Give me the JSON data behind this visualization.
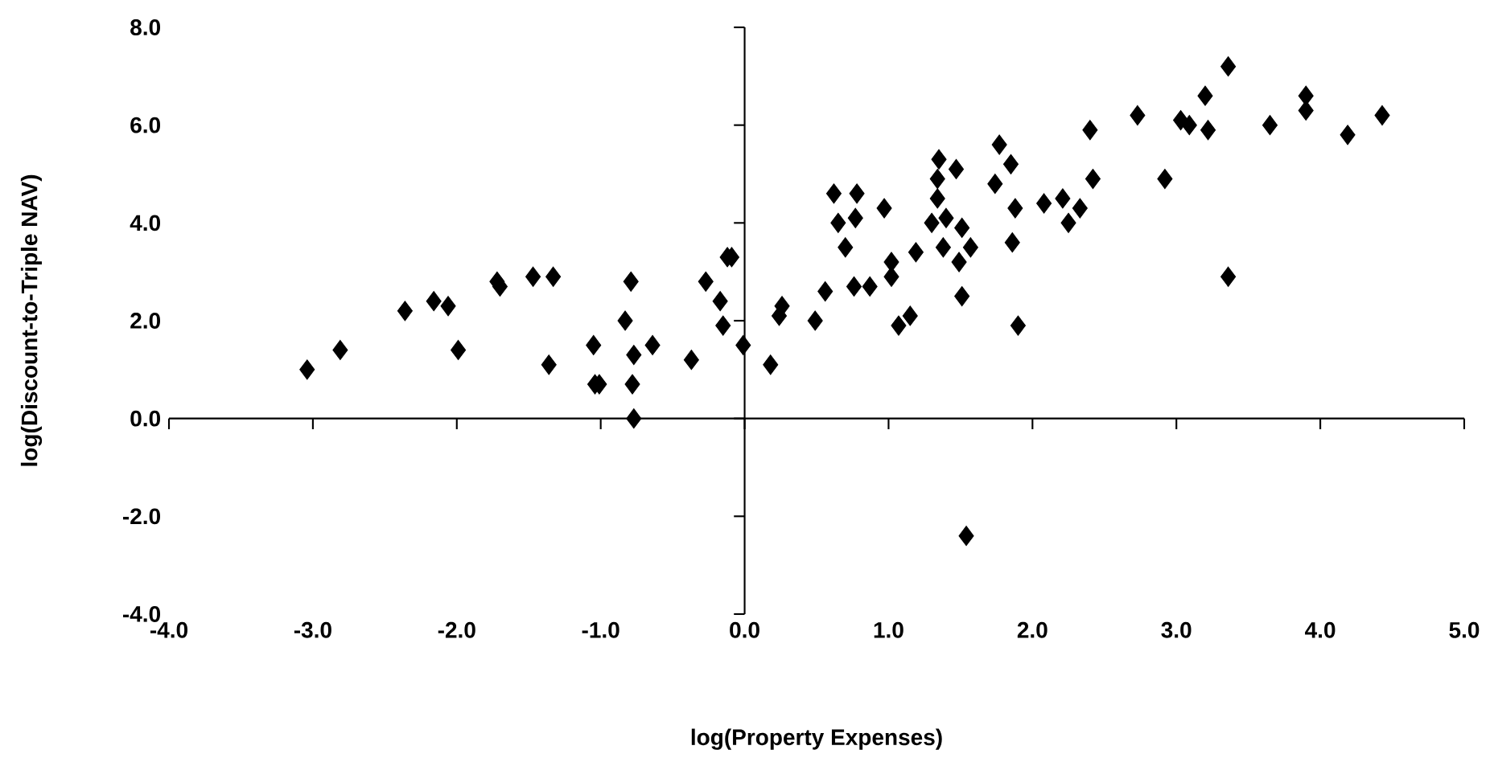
{
  "chart_data": {
    "type": "scatter",
    "xlabel": "log(Property Expenses)",
    "ylabel": "log(Discount-to-Triple NAV)",
    "marker": "diamond",
    "xlim": [
      -4,
      5
    ],
    "ylim": [
      -4,
      8
    ],
    "xticks": [
      {
        "value": -4,
        "label": "-4.0"
      },
      {
        "value": -3,
        "label": "-3.0"
      },
      {
        "value": -2,
        "label": "-2.0"
      },
      {
        "value": -1,
        "label": "-1.0"
      },
      {
        "value": 0,
        "label": "0.0"
      },
      {
        "value": 1,
        "label": "1.0"
      },
      {
        "value": 2,
        "label": "2.0"
      },
      {
        "value": 3,
        "label": "3.0"
      },
      {
        "value": 4,
        "label": "4.0"
      },
      {
        "value": 5,
        "label": "5.0"
      }
    ],
    "yticks": [
      {
        "value": -4,
        "label": "-4.0"
      },
      {
        "value": -2,
        "label": "-2.0"
      },
      {
        "value": 0,
        "label": "0.0"
      },
      {
        "value": 2,
        "label": "2.0"
      },
      {
        "value": 4,
        "label": "4.0"
      },
      {
        "value": 6,
        "label": "6.0"
      },
      {
        "value": 8,
        "label": "8.0"
      }
    ],
    "series": [
      {
        "color": "#000000",
        "x": [
          -3.04,
          -2.81,
          -2.36,
          -2.16,
          -2.06,
          -1.99,
          -1.72,
          -1.7,
          -1.47,
          -1.33,
          -1.36,
          -1.05,
          -1.04,
          -1.01,
          -0.83,
          -0.79,
          -0.78,
          -0.77,
          -0.77,
          -0.64,
          -0.37,
          -0.27,
          -0.17,
          -0.15,
          -0.12,
          -0.09,
          -0.01,
          0.18,
          0.26,
          0.24,
          0.49,
          0.56,
          0.62,
          0.78,
          0.65,
          0.77,
          0.7,
          0.97,
          0.76,
          0.87,
          1.02,
          1.02,
          1.07,
          1.15,
          1.19,
          1.35,
          1.47,
          1.34,
          1.34,
          1.3,
          1.4,
          1.38,
          1.51,
          1.57,
          1.49,
          1.51,
          1.77,
          1.85,
          1.74,
          1.88,
          1.86,
          1.9,
          2.08,
          2.21,
          2.33,
          2.25,
          2.4,
          2.42,
          2.73,
          2.92,
          3.03,
          3.09,
          3.2,
          3.22,
          3.36,
          3.36,
          3.65,
          3.9,
          3.9,
          4.19,
          4.43,
          1.54
        ],
        "values": [
          1.0,
          1.4,
          2.2,
          2.4,
          2.3,
          1.4,
          2.8,
          2.7,
          2.9,
          2.9,
          1.1,
          1.5,
          0.7,
          0.7,
          2.0,
          2.8,
          0.7,
          0.0,
          1.3,
          1.5,
          1.2,
          2.8,
          2.4,
          1.9,
          3.3,
          3.3,
          1.5,
          1.1,
          2.3,
          2.1,
          2.0,
          2.6,
          4.6,
          4.6,
          4.0,
          4.1,
          3.5,
          4.3,
          2.7,
          2.7,
          3.2,
          2.9,
          1.9,
          2.1,
          3.4,
          5.3,
          5.1,
          4.9,
          4.5,
          4.0,
          4.1,
          3.5,
          3.9,
          3.5,
          3.2,
          2.5,
          5.6,
          5.2,
          4.8,
          4.3,
          3.6,
          1.9,
          4.4,
          4.5,
          4.3,
          4.0,
          5.9,
          4.9,
          6.2,
          4.9,
          6.1,
          6.0,
          6.6,
          5.9,
          7.2,
          2.9,
          6.0,
          6.6,
          6.3,
          5.8,
          6.2,
          -2.4
        ]
      }
    ]
  }
}
